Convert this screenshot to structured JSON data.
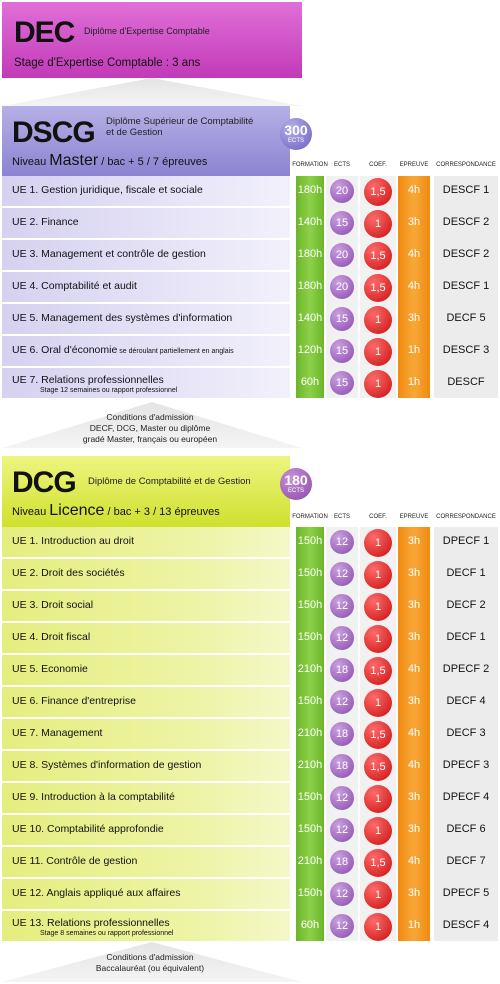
{
  "dec": {
    "abbr": "DEC",
    "full_name": "Diplôme d'Expertise Comptable",
    "stage": "Stage d'Expertise Comptable : 3 ans"
  },
  "dscg": {
    "abbr": "DSCG",
    "full_name_line1": "Diplôme Supérieur de Comptabilité",
    "full_name_line2": "et de Gestion",
    "niveau_prefix": "Niveau ",
    "niveau_level": "Master",
    "niveau_suffix": " / bac + 5 / 7 épreuves",
    "ects_total": "300",
    "ects_label": "ECTS",
    "rows": [
      {
        "label": "UE 1. Gestion juridique, fiscale et sociale",
        "note": "",
        "sub": "",
        "formation": "180h",
        "ects": "20",
        "coef": "1,5",
        "epreuve": "4h",
        "correspondance": "DESCF 1"
      },
      {
        "label": "UE 2. Finance",
        "note": "",
        "sub": "",
        "formation": "140h",
        "ects": "15",
        "coef": "1",
        "epreuve": "3h",
        "correspondance": "DESCF 2"
      },
      {
        "label": "UE 3. Management et contrôle de gestion",
        "note": "",
        "sub": "",
        "formation": "180h",
        "ects": "20",
        "coef": "1,5",
        "epreuve": "4h",
        "correspondance": "DESCF 2"
      },
      {
        "label": "UE 4. Comptabilité et audit",
        "note": "",
        "sub": "",
        "formation": "180h",
        "ects": "20",
        "coef": "1,5",
        "epreuve": "4h",
        "correspondance": "DESCF 1"
      },
      {
        "label": "UE 5. Management des systèmes d'information",
        "note": "",
        "sub": "",
        "formation": "140h",
        "ects": "15",
        "coef": "1",
        "epreuve": "3h",
        "correspondance": "DECF 5"
      },
      {
        "label": "UE 6. Oral d'économie",
        "note": " se déroulant partiellement en anglais",
        "sub": "",
        "formation": "120h",
        "ects": "15",
        "coef": "1",
        "epreuve": "1h",
        "correspondance": "DESCF 3"
      },
      {
        "label": "UE 7. Relations professionnelles",
        "note": "",
        "sub": "Stage 12 semaines ou rapport professionnel",
        "formation": "60h",
        "ects": "15",
        "coef": "1",
        "epreuve": "1h",
        "correspondance": "DESCF"
      }
    ],
    "conditions": {
      "title": "Conditions d'admission",
      "line1": "DECF, DCG, Master ou diplôme",
      "line2": "gradé Master, français ou européen"
    }
  },
  "dcg": {
    "abbr": "DCG",
    "full_name": "Diplôme de Comptabilité et de Gestion",
    "niveau_prefix": "Niveau ",
    "niveau_level": "Licence",
    "niveau_suffix": " / bac + 3 / 13 épreuves",
    "ects_total": "180",
    "ects_label": "ECTS",
    "rows": [
      {
        "label": "UE 1. Introduction au droit",
        "sub": "",
        "formation": "150h",
        "ects": "12",
        "coef": "1",
        "epreuve": "3h",
        "correspondance": "DPECF 1"
      },
      {
        "label": "UE 2. Droit des sociétés",
        "sub": "",
        "formation": "150h",
        "ects": "12",
        "coef": "1",
        "epreuve": "3h",
        "correspondance": "DECF 1"
      },
      {
        "label": "UE 3. Droit social",
        "sub": "",
        "formation": "150h",
        "ects": "12",
        "coef": "1",
        "epreuve": "3h",
        "correspondance": "DECF 2"
      },
      {
        "label": "UE 4. Droit fiscal",
        "sub": "",
        "formation": "150h",
        "ects": "12",
        "coef": "1",
        "epreuve": "3h",
        "correspondance": "DECF 1"
      },
      {
        "label": "UE 5. Economie",
        "sub": "",
        "formation": "210h",
        "ects": "18",
        "coef": "1,5",
        "epreuve": "4h",
        "correspondance": "DPECF 2"
      },
      {
        "label": "UE 6. Finance d'entreprise",
        "sub": "",
        "formation": "150h",
        "ects": "12",
        "coef": "1",
        "epreuve": "3h",
        "correspondance": "DECF 4"
      },
      {
        "label": "UE 7. Management",
        "sub": "",
        "formation": "210h",
        "ects": "18",
        "coef": "1,5",
        "epreuve": "4h",
        "correspondance": "DECF 3"
      },
      {
        "label": "UE 8. Systèmes d'information de gestion",
        "sub": "",
        "formation": "210h",
        "ects": "18",
        "coef": "1,5",
        "epreuve": "4h",
        "correspondance": "DPECF 3"
      },
      {
        "label": "UE 9. Introduction à la comptabilité",
        "sub": "",
        "formation": "150h",
        "ects": "12",
        "coef": "1",
        "epreuve": "3h",
        "correspondance": "DPECF 4"
      },
      {
        "label": "UE 10. Comptabilité approfondie",
        "sub": "",
        "formation": "150h",
        "ects": "12",
        "coef": "1",
        "epreuve": "3h",
        "correspondance": "DECF 6"
      },
      {
        "label": "UE 11. Contrôle de gestion",
        "sub": "",
        "formation": "210h",
        "ects": "18",
        "coef": "1,5",
        "epreuve": "4h",
        "correspondance": "DECF 7"
      },
      {
        "label": "UE 12. Anglais appliqué aux affaires",
        "sub": "",
        "formation": "150h",
        "ects": "12",
        "coef": "1",
        "epreuve": "3h",
        "correspondance": "DPECF 5"
      },
      {
        "label": "UE 13. Relations professionnelles",
        "sub": "Stage 8 semaines ou rapport professionnel",
        "formation": "60h",
        "ects": "12",
        "coef": "1",
        "epreuve": "1h",
        "correspondance": "DESCF 4"
      }
    ],
    "conditions": {
      "title": "Conditions d'admission",
      "line1": "Baccalauréat (ou équivalent)"
    }
  },
  "columns": {
    "formation": "FORMATION",
    "ects": "ECTS",
    "coef": "COEF.",
    "epreuve": "EPREUVE",
    "correspondance": "CORRESPONDANCE"
  },
  "colors": {
    "dec": "#c23ab8",
    "dscg": "#8a82d0",
    "dcg": "#cfe02c",
    "formation": "#6bb52a",
    "ects": "#8a4aad",
    "coef": "#c80f0f",
    "epreuve": "#f08a10"
  }
}
